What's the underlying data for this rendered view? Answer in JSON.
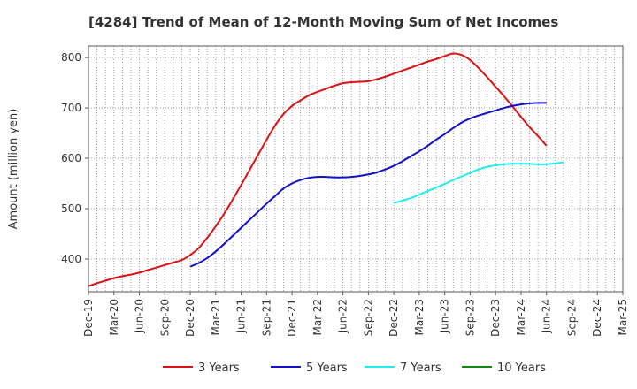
{
  "chart_data": {
    "type": "line",
    "title": "[4284]  Trend of Mean of 12-Month Moving Sum of Net Incomes",
    "xlabel": "",
    "ylabel": "Amount (million yen)",
    "x_ticks": [
      "Dec-19",
      "Mar-20",
      "Jun-20",
      "Sep-20",
      "Dec-20",
      "Mar-21",
      "Jun-21",
      "Sep-21",
      "Dec-21",
      "Mar-22",
      "Jun-22",
      "Sep-22",
      "Dec-22",
      "Mar-23",
      "Jun-23",
      "Sep-23",
      "Dec-23",
      "Mar-24",
      "Jun-24",
      "Sep-24",
      "Dec-24",
      "Mar-25"
    ],
    "y_ticks": [
      400,
      500,
      600,
      700,
      800
    ],
    "ylim": [
      335,
      823
    ],
    "grid": true,
    "legend_position": "bottom",
    "series": [
      {
        "name": "3 Years",
        "color": "#dd1111",
        "start_index": 0,
        "values": [
          346,
          352,
          357,
          362,
          366,
          369,
          373,
          378,
          383,
          388,
          393,
          398,
          408,
          422,
          442,
          465,
          490,
          518,
          547,
          577,
          607,
          637,
          665,
          688,
          704,
          715,
          725,
          732,
          738,
          744,
          749,
          751,
          752,
          753,
          757,
          762,
          768,
          774,
          780,
          786,
          792,
          797,
          803,
          808,
          805,
          795,
          779,
          761,
          742,
          723,
          703,
          682,
          662,
          644,
          625
        ]
      },
      {
        "name": "5 Years",
        "color": "#1111cc",
        "start_index": 12,
        "values": [
          385,
          392,
          402,
          415,
          430,
          446,
          462,
          478,
          494,
          510,
          525,
          540,
          550,
          557,
          561,
          563,
          563,
          562,
          562,
          563,
          565,
          568,
          572,
          578,
          585,
          594,
          604,
          614,
          625,
          637,
          648,
          660,
          671,
          679,
          685,
          690,
          695,
          700,
          704,
          707,
          709,
          710,
          710
        ]
      },
      {
        "name": "7 Years",
        "color": "#22eeee",
        "start_index": 36,
        "values": [
          511,
          516,
          521,
          528,
          535,
          542,
          549,
          557,
          564,
          571,
          578,
          583,
          586,
          588,
          589,
          589,
          589,
          588,
          588,
          590,
          592
        ]
      },
      {
        "name": "10 Years",
        "color": "#118811",
        "start_index": 0,
        "values": []
      }
    ]
  }
}
